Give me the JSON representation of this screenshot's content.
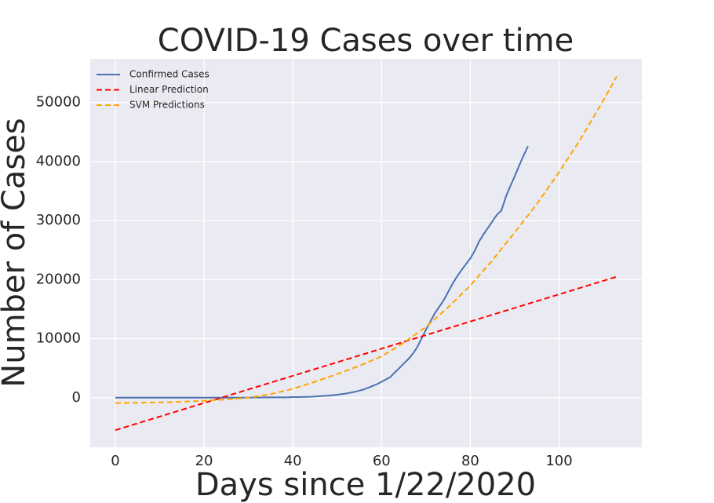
{
  "chart_data": {
    "type": "line",
    "title": "COVID-19 Cases over time",
    "x_label": "Days since 1/22/2020",
    "y_label": "Number of Cases",
    "xlim": [
      -5.65,
      118.65
    ],
    "ylim": [
      -8400,
      57400
    ],
    "xticks": [
      0,
      20,
      40,
      60,
      80,
      100
    ],
    "yticks": [
      0,
      10000,
      20000,
      30000,
      40000,
      50000
    ],
    "grid": true,
    "legend": "upper left",
    "series": [
      {
        "name": "Confirmed Cases",
        "color": "#4c72b0",
        "dashed": false,
        "x": [
          0,
          1,
          2,
          3,
          4,
          5,
          6,
          7,
          8,
          9,
          10,
          11,
          12,
          13,
          14,
          15,
          16,
          17,
          18,
          19,
          20,
          21,
          22,
          23,
          24,
          25,
          26,
          27,
          28,
          29,
          30,
          31,
          32,
          33,
          34,
          35,
          36,
          37,
          38,
          39,
          40,
          41,
          42,
          43,
          44,
          45,
          46,
          47,
          48,
          49,
          50,
          51,
          52,
          53,
          54,
          55,
          56,
          57,
          58,
          59,
          60,
          61,
          62,
          63,
          64,
          65,
          66,
          67,
          68,
          69,
          70,
          71,
          72,
          73,
          74,
          75,
          76,
          77,
          78,
          79,
          80,
          81,
          82,
          83,
          84,
          85,
          86,
          87,
          88,
          89,
          90,
          91,
          92,
          93
        ],
        "values": [
          1,
          1,
          2,
          2,
          5,
          5,
          5,
          5,
          5,
          6,
          6,
          8,
          8,
          11,
          11,
          11,
          12,
          12,
          12,
          12,
          13,
          13,
          13,
          14,
          14,
          15,
          15,
          15,
          15,
          16,
          16,
          35,
          35,
          35,
          53,
          57,
          60,
          60,
          62,
          70,
          100,
          110,
          120,
          135,
          150,
          200,
          250,
          300,
          350,
          420,
          500,
          600,
          700,
          850,
          1000,
          1200,
          1400,
          1700,
          2000,
          2300,
          2700,
          3100,
          3500,
          4300,
          5000,
          5800,
          6500,
          7400,
          8500,
          10000,
          11500,
          12900,
          14300,
          15400,
          16500,
          17900,
          19300,
          20500,
          21600,
          22600,
          23600,
          24900,
          26500,
          27700,
          28800,
          29900,
          31000,
          31700,
          34000,
          35800,
          37500,
          39300,
          41000,
          42600
        ]
      },
      {
        "name": "Linear Prediction",
        "color": "#ff0000",
        "dashed": true,
        "x": [
          0,
          5,
          10,
          15,
          20,
          25,
          30,
          35,
          40,
          45,
          50,
          55,
          60,
          65,
          70,
          75,
          80,
          85,
          90,
          95,
          100,
          105,
          110,
          113
        ],
        "values": [
          -5500,
          -4350,
          -3199,
          -2049,
          -898,
          252,
          1403,
          2553,
          3704,
          4854,
          6004,
          7155,
          8305,
          9456,
          10606,
          11757,
          12907,
          14058,
          15208,
          16358,
          17509,
          18659,
          19810,
          20500
        ]
      },
      {
        "name": "SVM Predictions",
        "color": "#ffa500",
        "dashed": true,
        "x": [
          0,
          5,
          10,
          15,
          20,
          25,
          30,
          35,
          40,
          45,
          50,
          55,
          60,
          65,
          70,
          75,
          80,
          85,
          90,
          95,
          100,
          105,
          110,
          113
        ],
        "values": [
          -900,
          -870,
          -800,
          -700,
          -500,
          -300,
          0,
          600,
          1500,
          2700,
          4000,
          5400,
          7000,
          9300,
          12000,
          15300,
          19000,
          23300,
          28000,
          32800,
          38200,
          44000,
          50400,
          54400
        ]
      }
    ]
  }
}
